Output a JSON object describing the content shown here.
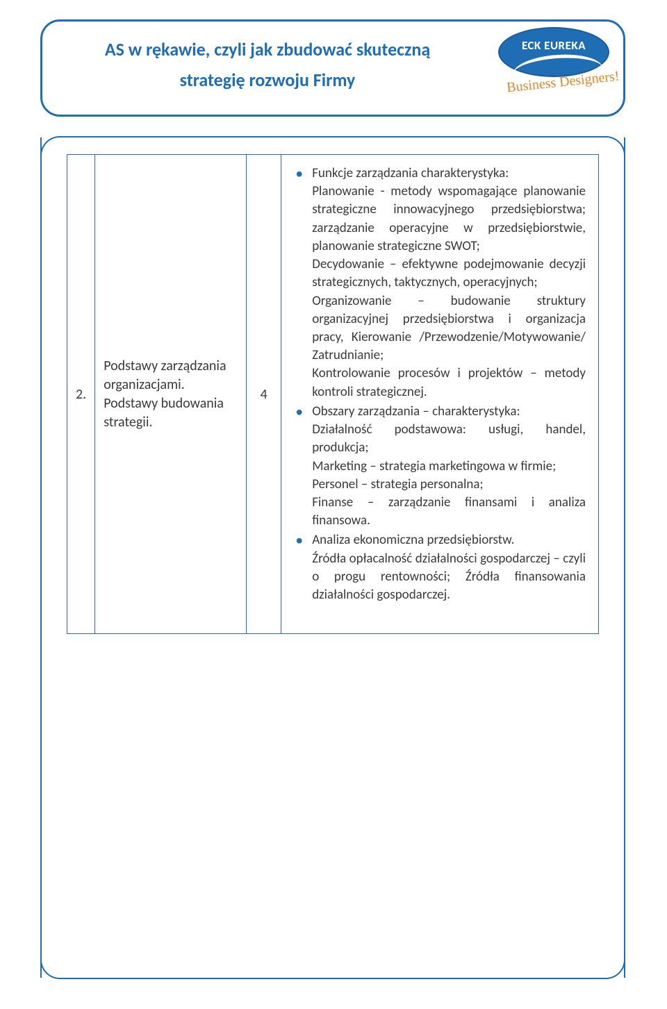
{
  "colors": {
    "primary": "#1f6db5",
    "text": "#3a3a3a",
    "tagline": "#d98f2e",
    "white": "#ffffff"
  },
  "header": {
    "title_line1": "AS w rękawie, czyli jak zbudować skuteczną",
    "title_line2": "strategię rozwoju Firmy"
  },
  "logo": {
    "name": "ECK EUREKA",
    "tagline": "Business Designers!"
  },
  "row": {
    "number": "2.",
    "topic": "Podstawy zarządzania organizacjami. Podstawy budowania strategii.",
    "hours": "4",
    "bullets": [
      {
        "lead": "Funkcje zarządzania charakterystyka:",
        "body": "Planowanie - metody wspomagające planowanie strategiczne innowacyjnego przedsiębiorstwa; zarządzanie operacyjne w przedsiębiorstwie, planowanie strategiczne SWOT;\nDecydowanie – efektywne podejmowanie decyzji strategicznych, taktycznych, operacyjnych;\nOrganizowanie – budowanie struktury organizacyjnej przedsiębiorstwa i organizacja pracy, Kierowanie /Przewodzenie/Motywowanie/ Zatrudnianie;\nKontrolowanie procesów i projektów – metody kontroli strategicznej."
      },
      {
        "lead": "Obszary zarządzania – charakterystyka:",
        "body": "Działalność podstawowa: usługi, handel, produkcja;\nMarketing – strategia marketingowa w firmie;\nPersonel – strategia personalna;\nFinanse – zarządzanie finansami i analiza finansowa."
      },
      {
        "lead": "Analiza ekonomiczna przedsiębiorstw.",
        "body": "Źródła opłacalność działalności gospodarczej – czyli o progu rentowności; Źródła finansowania działalności gospodarczej."
      }
    ]
  }
}
